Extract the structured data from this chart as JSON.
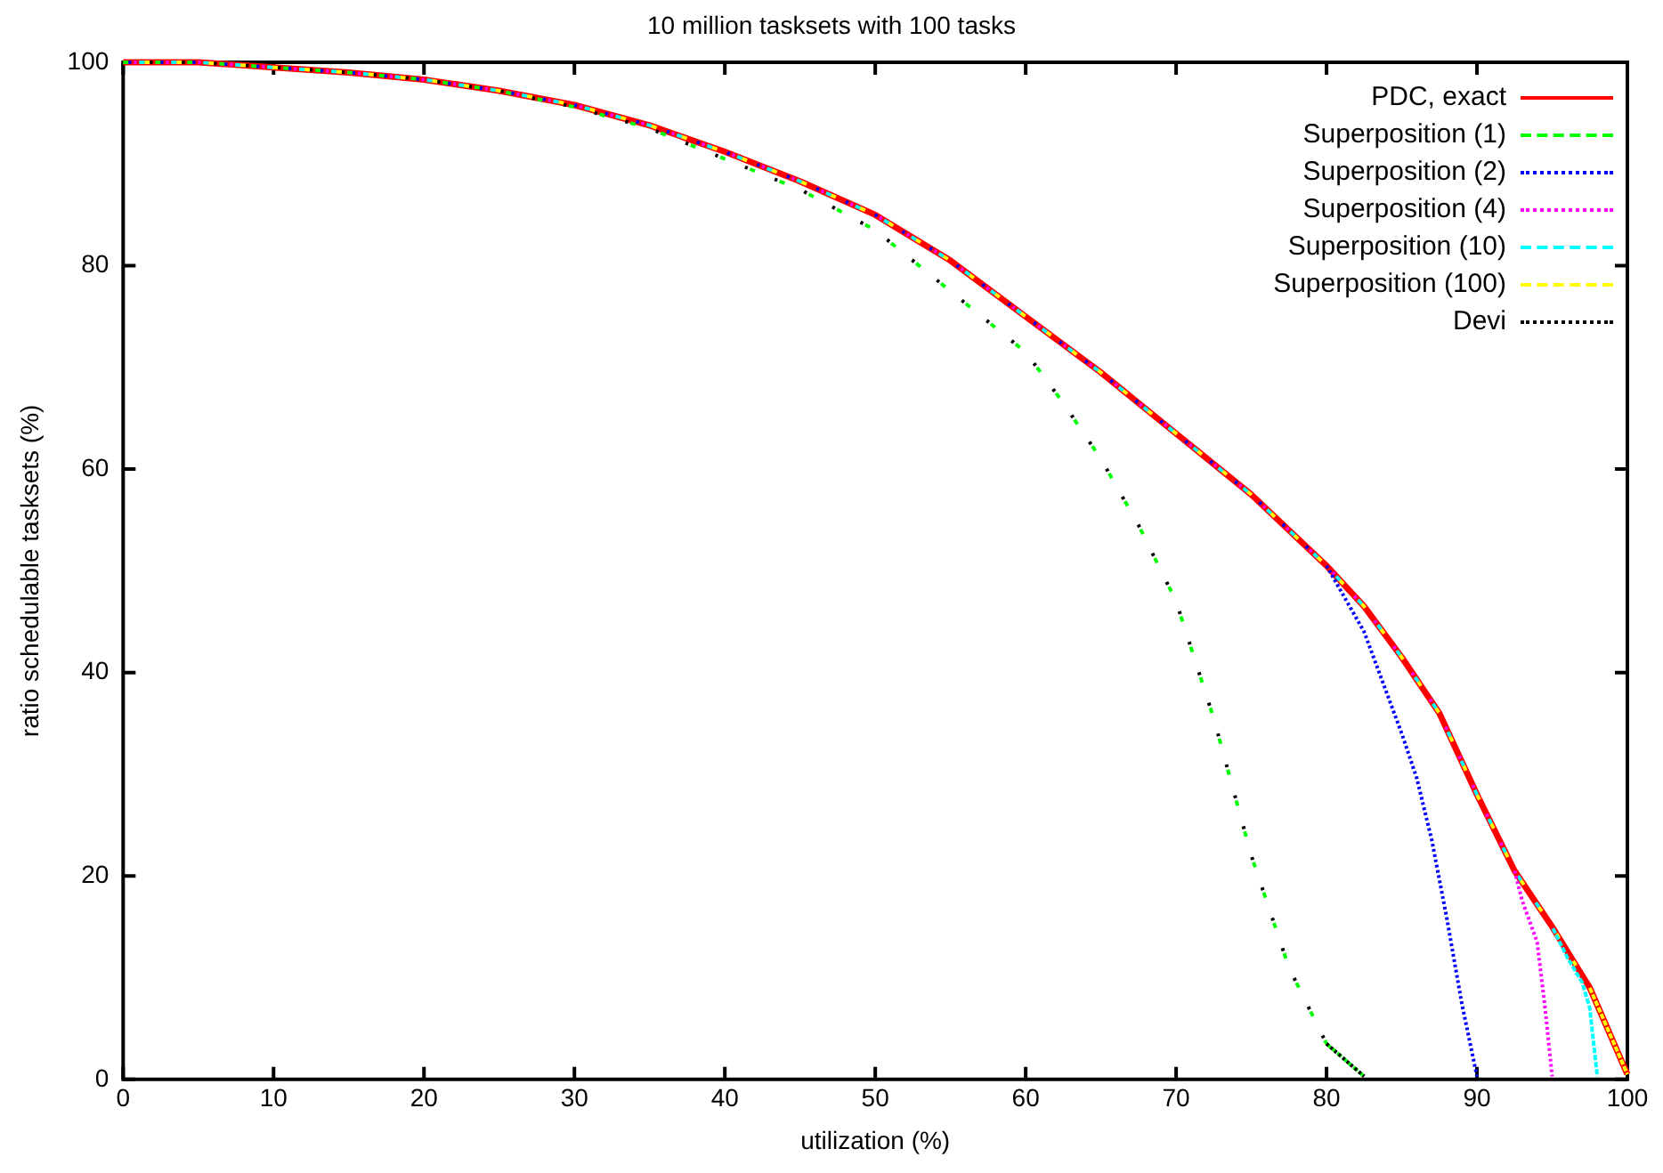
{
  "chart_data": {
    "type": "line",
    "title": "10 million tasksets with 100 tasks",
    "xlabel": "utilization (%)",
    "ylabel": "ratio schedulable tasksets (%)",
    "xlim": [
      0,
      100
    ],
    "xticks": [
      0,
      10,
      20,
      30,
      40,
      50,
      60,
      70,
      80,
      90,
      100
    ],
    "ylim": [
      0,
      100
    ],
    "yticks": [
      0,
      20,
      40,
      60,
      80,
      100
    ],
    "grid": false,
    "legend": "top right",
    "marker": "none",
    "series": [
      {
        "name": "PDC, exact",
        "color": "#ff0000",
        "line_style": "solid",
        "x": [
          0,
          5,
          10,
          15,
          20,
          25,
          30,
          35,
          40,
          45,
          50,
          55,
          60,
          65,
          70,
          75,
          80,
          82.5,
          85,
          87.5,
          90,
          92.5,
          95,
          97.5,
          100
        ],
        "values": [
          100,
          100,
          99.5,
          99,
          98.3,
          97.2,
          95.8,
          93.8,
          91.2,
          88.3,
          85,
          80.5,
          75,
          69.5,
          63.5,
          57.5,
          50.5,
          46.5,
          41.5,
          36,
          28,
          20.5,
          15,
          9,
          0.5
        ]
      },
      {
        "name": "Superposition (1)",
        "color": "#00ff00",
        "line_style": "dashed",
        "x": [
          0,
          5,
          10,
          15,
          20,
          25,
          30,
          35,
          40,
          45,
          50,
          55,
          60,
          62.5,
          65,
          67.5,
          70,
          72.5,
          75,
          77.5,
          80,
          82.5
        ],
        "values": [
          100,
          100,
          99.5,
          99,
          98.3,
          97.2,
          95.6,
          93.5,
          90.5,
          87.5,
          83.5,
          77.5,
          71.5,
          66.5,
          61,
          54.5,
          47,
          35.5,
          22,
          11,
          3.5,
          0.3
        ]
      },
      {
        "name": "Superposition (2)",
        "color": "#0000ff",
        "line_style": "dotted",
        "x": [
          0,
          5,
          10,
          15,
          20,
          25,
          30,
          35,
          40,
          45,
          50,
          55,
          60,
          65,
          70,
          75,
          80,
          82.5,
          85,
          86,
          87,
          88,
          89,
          90
        ],
        "values": [
          100,
          100,
          99.5,
          99,
          98.3,
          97.2,
          95.8,
          93.8,
          91.2,
          88.3,
          85,
          80.5,
          75,
          69.5,
          63.5,
          57.5,
          50.5,
          44,
          34,
          29.6,
          23.5,
          15.8,
          7.4,
          0.3
        ]
      },
      {
        "name": "Superposition (4)",
        "color": "#ff00ff",
        "line_style": "dotted",
        "x": [
          0,
          5,
          10,
          15,
          20,
          25,
          30,
          35,
          40,
          45,
          50,
          55,
          60,
          65,
          70,
          75,
          80,
          82.5,
          85,
          87.5,
          90,
          92.5,
          93,
          94,
          94.5,
          95
        ],
        "values": [
          100,
          100,
          99.5,
          99,
          98.3,
          97.2,
          95.8,
          93.8,
          91.2,
          88.3,
          85,
          80.5,
          75,
          69.5,
          63.5,
          57.5,
          50.5,
          46.5,
          41.5,
          36,
          28,
          20.5,
          17.6,
          13.5,
          7.4,
          0.3
        ]
      },
      {
        "name": "Superposition (10)",
        "color": "#00ffff",
        "line_style": "dashed",
        "x": [
          0,
          5,
          10,
          15,
          20,
          25,
          30,
          35,
          40,
          45,
          50,
          55,
          60,
          65,
          70,
          75,
          80,
          82.5,
          85,
          87.5,
          90,
          92.5,
          95,
          96,
          97,
          97.5,
          98
        ],
        "values": [
          100,
          100,
          99.5,
          99,
          98.3,
          97.2,
          95.8,
          93.8,
          91.2,
          88.3,
          85,
          80.5,
          75,
          69.5,
          63.5,
          57.5,
          50.5,
          46.5,
          41.5,
          36,
          28,
          20.5,
          15,
          12,
          9.5,
          7,
          0.3
        ]
      },
      {
        "name": "Superposition (100)",
        "color": "#ffff00",
        "line_style": "dashed",
        "x": [
          0,
          5,
          10,
          15,
          20,
          25,
          30,
          35,
          40,
          45,
          50,
          55,
          60,
          65,
          70,
          75,
          80,
          82.5,
          85,
          87.5,
          90,
          92.5,
          95,
          97.5,
          100
        ],
        "values": [
          100,
          100,
          99.5,
          99,
          98.3,
          97.2,
          95.8,
          93.8,
          91.2,
          88.3,
          85,
          80.5,
          75,
          69.5,
          63.5,
          57.5,
          50.5,
          46.5,
          41.5,
          36,
          28,
          20.5,
          15,
          9,
          0.5
        ]
      },
      {
        "name": "Devi",
        "color": "#000000",
        "line_style": "dotted",
        "x": [
          0,
          5,
          10,
          15,
          20,
          25,
          30,
          35,
          40,
          45,
          50,
          55,
          60,
          62.5,
          65,
          67.5,
          70,
          72.5,
          75,
          77.5,
          80,
          82.5
        ],
        "values": [
          100,
          100,
          99.5,
          99,
          98.3,
          97.2,
          95.6,
          93.5,
          90.5,
          87.5,
          83.5,
          77.5,
          71.5,
          66.5,
          61,
          54.5,
          47,
          35.5,
          22,
          11,
          3.5,
          0.3
        ]
      }
    ]
  }
}
